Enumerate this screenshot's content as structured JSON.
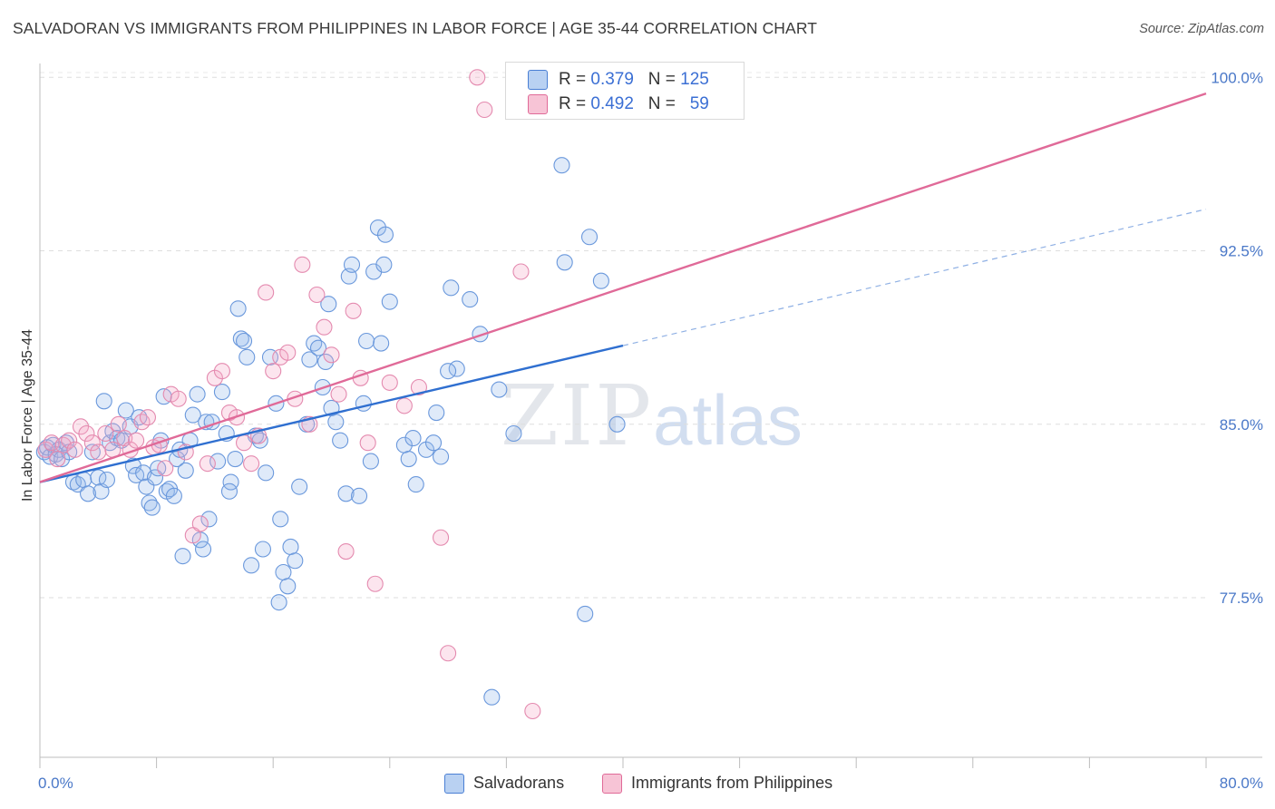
{
  "title": "SALVADORAN VS IMMIGRANTS FROM PHILIPPINES IN LABOR FORCE | AGE 35-44 CORRELATION CHART",
  "source": "Source: ZipAtlas.com",
  "watermark": {
    "zip": "ZIP",
    "atlas": "atlas"
  },
  "colors": {
    "blue": "#4a7fd4",
    "blue_fill": "#b9d1f2",
    "pink": "#e06a98",
    "pink_fill": "#f7c4d6",
    "tick": "#4a78c8"
  },
  "legend_top": [
    {
      "r_label": "R =",
      "r": "0.379",
      "n_label": "N =",
      "n": "125"
    },
    {
      "r_label": "R =",
      "r": "0.492",
      "n_label": "N =",
      "n": "59"
    }
  ],
  "chart_data": {
    "type": "scatter",
    "title": "SALVADORAN VS IMMIGRANTS FROM PHILIPPINES IN LABOR FORCE | AGE 35-44 CORRELATION CHART",
    "xlabel": "",
    "ylabel": "In Labor Force | Age 35-44",
    "xlim": [
      0,
      80
    ],
    "ylim": [
      70.6,
      100.6
    ],
    "x_tick_labels": [
      "0.0%",
      "80.0%"
    ],
    "y_ticks": [
      77.5,
      85.0,
      92.5,
      100.0
    ],
    "y_tick_labels": [
      "77.5%",
      "85.0%",
      "92.5%",
      "100.0%"
    ],
    "grid": true,
    "legend_position": "top-center",
    "series": [
      {
        "name": "Salvadorans",
        "color": "#4a7fd4",
        "r": 0.379,
        "n": 125,
        "trend": {
          "x": [
            0,
            40
          ],
          "y": [
            82.5,
            88.4
          ],
          "dashed_x": [
            40,
            80
          ],
          "dashed_y": [
            88.4,
            94.3
          ]
        },
        "points": [
          [
            0.3,
            83.8
          ],
          [
            0.5,
            84.0
          ],
          [
            0.7,
            83.6
          ],
          [
            0.9,
            84.1
          ],
          [
            1.1,
            83.7
          ],
          [
            1.3,
            83.9
          ],
          [
            1.5,
            83.5
          ],
          [
            1.8,
            84.2
          ],
          [
            2.0,
            83.8
          ],
          [
            2.3,
            82.5
          ],
          [
            2.6,
            82.4
          ],
          [
            3.0,
            82.6
          ],
          [
            3.3,
            82.0
          ],
          [
            3.6,
            83.8
          ],
          [
            4.0,
            82.7
          ],
          [
            4.2,
            82.1
          ],
          [
            4.4,
            86.0
          ],
          [
            4.6,
            82.6
          ],
          [
            4.8,
            84.2
          ],
          [
            5.0,
            84.7
          ],
          [
            5.3,
            84.4
          ],
          [
            5.6,
            84.3
          ],
          [
            5.9,
            85.6
          ],
          [
            6.2,
            84.9
          ],
          [
            6.4,
            83.2
          ],
          [
            6.6,
            82.8
          ],
          [
            6.8,
            85.3
          ],
          [
            7.1,
            82.9
          ],
          [
            7.3,
            82.3
          ],
          [
            7.5,
            81.6
          ],
          [
            7.7,
            81.4
          ],
          [
            7.9,
            82.7
          ],
          [
            8.1,
            83.1
          ],
          [
            8.3,
            84.3
          ],
          [
            8.5,
            86.2
          ],
          [
            8.7,
            82.1
          ],
          [
            8.9,
            82.2
          ],
          [
            9.2,
            81.9
          ],
          [
            9.4,
            83.5
          ],
          [
            9.6,
            83.9
          ],
          [
            9.8,
            79.3
          ],
          [
            10.0,
            83.0
          ],
          [
            10.3,
            84.3
          ],
          [
            10.5,
            85.4
          ],
          [
            10.8,
            86.3
          ],
          [
            11.0,
            80.0
          ],
          [
            11.2,
            79.6
          ],
          [
            11.4,
            85.1
          ],
          [
            11.6,
            80.9
          ],
          [
            11.8,
            85.1
          ],
          [
            12.2,
            83.4
          ],
          [
            12.5,
            86.4
          ],
          [
            12.8,
            84.6
          ],
          [
            13.1,
            82.5
          ],
          [
            13.0,
            82.1
          ],
          [
            13.4,
            83.5
          ],
          [
            13.6,
            90.0
          ],
          [
            13.8,
            88.7
          ],
          [
            14.0,
            88.6
          ],
          [
            14.2,
            87.9
          ],
          [
            14.5,
            78.9
          ],
          [
            14.8,
            84.5
          ],
          [
            15.1,
            84.3
          ],
          [
            15.3,
            79.6
          ],
          [
            15.5,
            82.9
          ],
          [
            15.8,
            87.9
          ],
          [
            16.2,
            85.9
          ],
          [
            16.5,
            80.9
          ],
          [
            16.7,
            78.6
          ],
          [
            17.0,
            78.0
          ],
          [
            16.4,
            77.3
          ],
          [
            17.2,
            79.7
          ],
          [
            17.5,
            79.1
          ],
          [
            17.8,
            82.3
          ],
          [
            18.3,
            85.0
          ],
          [
            18.5,
            87.8
          ],
          [
            18.8,
            88.5
          ],
          [
            19.1,
            88.3
          ],
          [
            19.4,
            86.6
          ],
          [
            19.6,
            87.7
          ],
          [
            19.8,
            90.2
          ],
          [
            20.0,
            85.7
          ],
          [
            20.3,
            85.1
          ],
          [
            20.6,
            84.3
          ],
          [
            21.0,
            82.0
          ],
          [
            21.2,
            91.4
          ],
          [
            21.4,
            91.9
          ],
          [
            21.9,
            81.9
          ],
          [
            22.2,
            85.9
          ],
          [
            22.4,
            88.6
          ],
          [
            22.7,
            83.4
          ],
          [
            22.9,
            91.6
          ],
          [
            23.2,
            93.5
          ],
          [
            23.4,
            88.5
          ],
          [
            23.7,
            93.2
          ],
          [
            23.6,
            91.9
          ],
          [
            24.0,
            90.3
          ],
          [
            25.0,
            84.1
          ],
          [
            25.3,
            83.5
          ],
          [
            25.6,
            84.4
          ],
          [
            25.8,
            82.4
          ],
          [
            26.5,
            83.9
          ],
          [
            27.0,
            84.2
          ],
          [
            27.2,
            85.5
          ],
          [
            27.5,
            83.6
          ],
          [
            28.2,
            90.9
          ],
          [
            28.6,
            87.4
          ],
          [
            29.5,
            90.4
          ],
          [
            30.2,
            88.9
          ],
          [
            31.0,
            73.2
          ],
          [
            31.5,
            86.5
          ],
          [
            32.5,
            84.6
          ],
          [
            35.8,
            96.2
          ],
          [
            37.7,
            93.1
          ],
          [
            37.4,
            76.8
          ],
          [
            38.5,
            91.2
          ],
          [
            39.6,
            85.0
          ],
          [
            36.0,
            92.0
          ],
          [
            28.0,
            87.3
          ]
        ]
      },
      {
        "name": "Immigrants from Philippines",
        "color": "#e06a98",
        "r": 0.492,
        "n": 59,
        "trend": {
          "x": [
            0,
            80
          ],
          "y": [
            82.5,
            99.3
          ]
        },
        "points": [
          [
            0.4,
            83.9
          ],
          [
            0.8,
            84.2
          ],
          [
            1.2,
            83.5
          ],
          [
            1.6,
            84.1
          ],
          [
            2.0,
            84.3
          ],
          [
            2.4,
            83.9
          ],
          [
            2.8,
            84.9
          ],
          [
            3.2,
            84.6
          ],
          [
            3.6,
            84.2
          ],
          [
            4.0,
            83.8
          ],
          [
            4.5,
            84.6
          ],
          [
            5.0,
            83.9
          ],
          [
            5.4,
            85.0
          ],
          [
            5.8,
            84.4
          ],
          [
            6.2,
            83.9
          ],
          [
            6.6,
            84.3
          ],
          [
            7.0,
            85.1
          ],
          [
            7.4,
            85.3
          ],
          [
            7.8,
            84.0
          ],
          [
            8.2,
            84.1
          ],
          [
            8.6,
            83.1
          ],
          [
            9.0,
            86.3
          ],
          [
            9.5,
            86.1
          ],
          [
            10.0,
            83.8
          ],
          [
            10.5,
            80.2
          ],
          [
            11.0,
            80.7
          ],
          [
            11.5,
            83.3
          ],
          [
            12.0,
            87.0
          ],
          [
            12.5,
            87.3
          ],
          [
            13.0,
            85.5
          ],
          [
            13.5,
            85.3
          ],
          [
            14.0,
            84.2
          ],
          [
            14.5,
            83.3
          ],
          [
            15.0,
            84.5
          ],
          [
            15.5,
            90.7
          ],
          [
            16.0,
            87.3
          ],
          [
            16.5,
            87.9
          ],
          [
            17.0,
            88.1
          ],
          [
            17.5,
            86.1
          ],
          [
            18.0,
            91.9
          ],
          [
            18.5,
            85.0
          ],
          [
            19.0,
            90.6
          ],
          [
            19.5,
            89.2
          ],
          [
            20.0,
            88.0
          ],
          [
            20.5,
            86.3
          ],
          [
            21.0,
            79.5
          ],
          [
            21.5,
            89.9
          ],
          [
            22.0,
            87.0
          ],
          [
            22.5,
            84.2
          ],
          [
            23.0,
            78.1
          ],
          [
            24.0,
            86.8
          ],
          [
            25.0,
            85.8
          ],
          [
            26.0,
            86.6
          ],
          [
            27.5,
            80.1
          ],
          [
            28.0,
            75.1
          ],
          [
            30.0,
            100.0
          ],
          [
            30.5,
            98.6
          ],
          [
            33.0,
            91.6
          ],
          [
            33.8,
            72.6
          ]
        ]
      }
    ],
    "extra_points_note": ""
  },
  "legend_bottom": [
    {
      "label": "Salvadorans"
    },
    {
      "label": "Immigrants from Philippines"
    }
  ]
}
